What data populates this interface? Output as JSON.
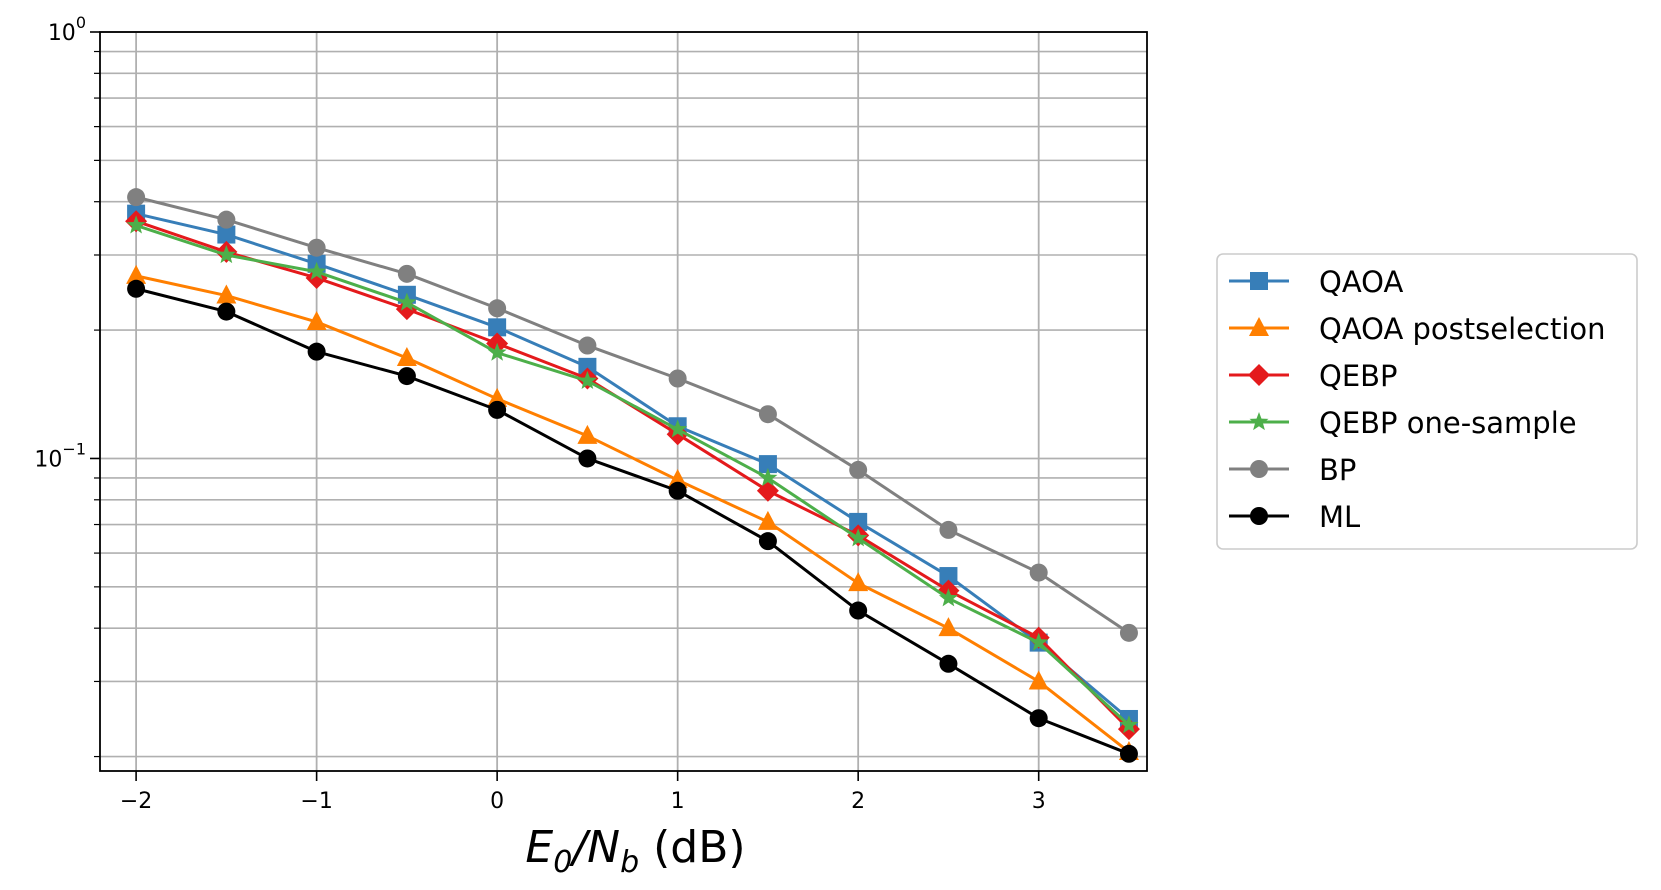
{
  "chart_data": {
    "type": "line",
    "xlabel": "E0/Nb (dB)",
    "xlabel_parts": {
      "main_a": "E",
      "sub_a": "0",
      "slash": "/",
      "main_b": "N",
      "sub_b": "b",
      "unit": " (dB)"
    },
    "ylabel": "",
    "x_scale": "linear",
    "y_scale": "log",
    "xlim": [
      -2.2,
      3.6
    ],
    "ylim": [
      0.0185,
      1.0
    ],
    "grid": true,
    "legend_position": "right, outside plot",
    "x_ticks": [
      -2,
      -1,
      0,
      1,
      2,
      3
    ],
    "x_tick_labels": [
      "−2",
      "−1",
      "0",
      "1",
      "2",
      "3"
    ],
    "y_major_ticks": [
      {
        "value": 1.0,
        "base": "10",
        "exp": "0"
      },
      {
        "value": 0.1,
        "base": "10",
        "exp": "−1"
      }
    ],
    "y_minor_ticks": [
      0.02,
      0.03,
      0.04,
      0.05,
      0.06,
      0.07,
      0.08,
      0.09,
      0.2,
      0.3,
      0.4,
      0.5,
      0.6,
      0.7,
      0.8,
      0.9
    ],
    "x": [
      -2,
      -1.5,
      -1,
      -0.5,
      0,
      0.5,
      1,
      1.5,
      2,
      2.5,
      3,
      3.5
    ],
    "series": [
      {
        "name": "QAOA",
        "color": "#377eb8",
        "marker": "square",
        "values": [
          0.375,
          0.335,
          0.286,
          0.242,
          0.203,
          0.164,
          0.119,
          0.097,
          0.071,
          0.053,
          0.037,
          0.0245
        ]
      },
      {
        "name": "QAOA postselection",
        "color": "#ff7f00",
        "marker": "triangle",
        "values": [
          0.268,
          0.241,
          0.209,
          0.172,
          0.138,
          0.113,
          0.089,
          0.071,
          0.051,
          0.04,
          0.03,
          0.0205
        ]
      },
      {
        "name": "QEBP",
        "color": "#e41a1c",
        "marker": "diamond",
        "values": [
          0.36,
          0.305,
          0.265,
          0.224,
          0.186,
          0.154,
          0.114,
          0.084,
          0.066,
          0.049,
          0.038,
          0.0232
        ]
      },
      {
        "name": "QEBP one-sample",
        "color": "#4daf4a",
        "marker": "star",
        "values": [
          0.352,
          0.3,
          0.274,
          0.232,
          0.177,
          0.152,
          0.117,
          0.09,
          0.065,
          0.047,
          0.037,
          0.0237
        ]
      },
      {
        "name": "BP",
        "color": "#808080",
        "marker": "circle",
        "values": [
          0.41,
          0.363,
          0.312,
          0.271,
          0.225,
          0.184,
          0.154,
          0.127,
          0.094,
          0.068,
          0.054,
          0.039
        ]
      },
      {
        "name": "ML",
        "color": "#000000",
        "marker": "circle",
        "values": [
          0.25,
          0.221,
          0.178,
          0.156,
          0.13,
          0.1,
          0.084,
          0.064,
          0.044,
          0.033,
          0.0246,
          0.0203
        ]
      }
    ]
  }
}
